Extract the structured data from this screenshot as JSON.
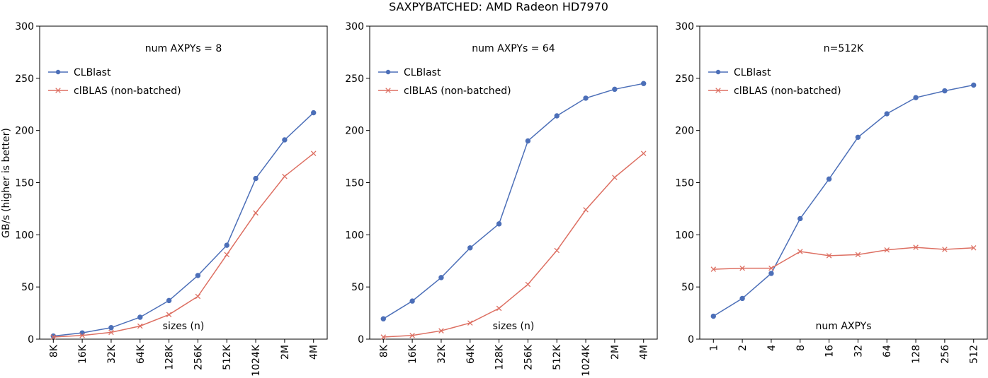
{
  "title": "SAXPYBATCHED: AMD Radeon HD7970",
  "ylabel": "GB/s (higher is better)",
  "colors": {
    "clblast": "#4c6fb8",
    "clblas": "#dd6f62"
  },
  "chart_data": [
    {
      "type": "line",
      "annotation": "num AXPYs = 8",
      "xlabel": "sizes (n)",
      "ylabel": "GB/s (higher is better)",
      "ylim": [
        0,
        300
      ],
      "yticks": [
        0,
        50,
        100,
        150,
        200,
        250,
        300
      ],
      "categories": [
        "8K",
        "16K",
        "32K",
        "64K",
        "128K",
        "256K",
        "512K",
        "1024K",
        "2M",
        "4M"
      ],
      "legend_position": "upper-left",
      "grid": false,
      "series": [
        {
          "name": "CLBlast",
          "marker": "circle",
          "values": [
            3,
            6,
            11,
            21,
            37,
            61,
            90,
            154,
            191,
            217
          ]
        },
        {
          "name": "clBLAS (non-batched)",
          "marker": "x",
          "values": [
            2,
            3.5,
            6.5,
            12.5,
            23.5,
            41,
            81,
            121,
            156,
            178
          ]
        }
      ]
    },
    {
      "type": "line",
      "annotation": "num AXPYs = 64",
      "xlabel": "sizes (n)",
      "ylabel": "",
      "ylim": [
        0,
        300
      ],
      "yticks": [
        0,
        50,
        100,
        150,
        200,
        250,
        300
      ],
      "categories": [
        "8K",
        "16K",
        "32K",
        "64K",
        "128K",
        "256K",
        "512K",
        "1024K",
        "2M",
        "4M"
      ],
      "legend_position": "upper-left",
      "grid": false,
      "series": [
        {
          "name": "CLBlast",
          "marker": "circle",
          "values": [
            19.5,
            36.5,
            59,
            87.5,
            110.5,
            190,
            214,
            231,
            239.5,
            245
          ]
        },
        {
          "name": "clBLAS (non-batched)",
          "marker": "x",
          "values": [
            2,
            3.5,
            8,
            15.5,
            29.5,
            52.5,
            85,
            124,
            155,
            178
          ]
        }
      ]
    },
    {
      "type": "line",
      "annotation": "n=512K",
      "xlabel": "num AXPYs",
      "ylabel": "",
      "ylim": [
        0,
        300
      ],
      "yticks": [
        0,
        50,
        100,
        150,
        200,
        250,
        300
      ],
      "categories": [
        "1",
        "2",
        "4",
        "8",
        "16",
        "32",
        "64",
        "128",
        "256",
        "512"
      ],
      "legend_position": "upper-left",
      "grid": false,
      "series": [
        {
          "name": "CLBlast",
          "marker": "circle",
          "values": [
            22,
            39,
            63,
            115.5,
            153.5,
            193.5,
            216,
            231.5,
            238,
            243.5
          ]
        },
        {
          "name": "clBLAS (non-batched)",
          "marker": "x",
          "values": [
            67,
            68,
            68,
            84,
            80,
            81,
            85.5,
            88,
            86,
            87.5
          ]
        }
      ]
    }
  ]
}
